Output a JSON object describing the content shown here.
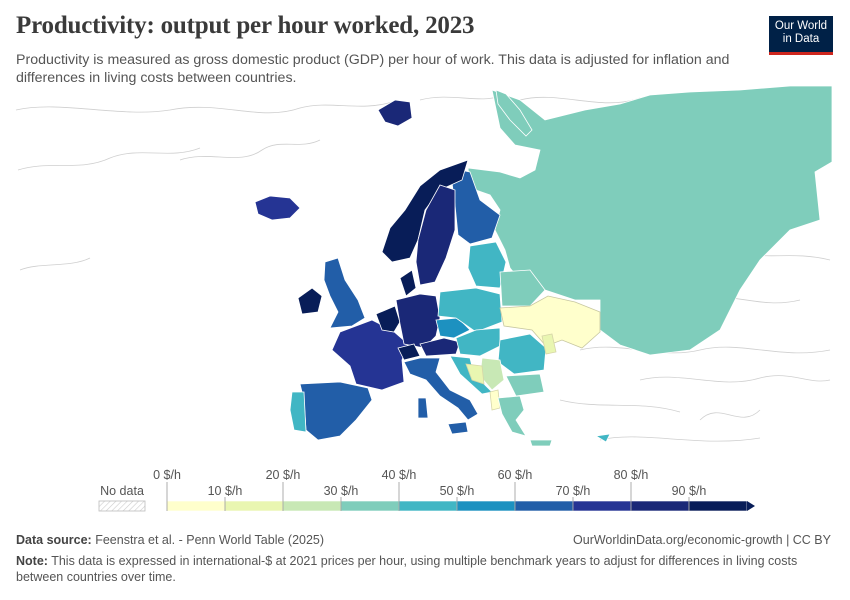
{
  "header": {
    "title": "Productivity: output per hour worked, 2023",
    "subtitle": "Productivity is measured as gross domestic product (GDP) per hour of work. This data is adjusted for inflation and differences in living costs between countries.",
    "logo_line1": "Our World",
    "logo_line2": "in Data"
  },
  "legend": {
    "no_data_label": "No data",
    "upper_ticks": [
      "0 $/h",
      "20 $/h",
      "40 $/h",
      "60 $/h",
      "80 $/h"
    ],
    "lower_ticks": [
      "10 $/h",
      "30 $/h",
      "50 $/h",
      "70 $/h",
      "90 $/h"
    ],
    "colors": [
      "#ffffcc",
      "#e9f6b1",
      "#c8e8b5",
      "#7fcdbb",
      "#41b6c4",
      "#1d91c0",
      "#225ea8",
      "#253494",
      "#1a2877",
      "#081d58"
    ]
  },
  "footer": {
    "source_label": "Data source:",
    "source_text": "Feenstra et al. - Penn World Table (2025)",
    "credit": "OurWorldinData.org/economic-growth | CC BY",
    "note_label": "Note:",
    "note_text": "This data is expressed in international-$ at 2021 prices per hour, using multiple benchmark years to adjust for differences in living costs between countries over time."
  }
}
